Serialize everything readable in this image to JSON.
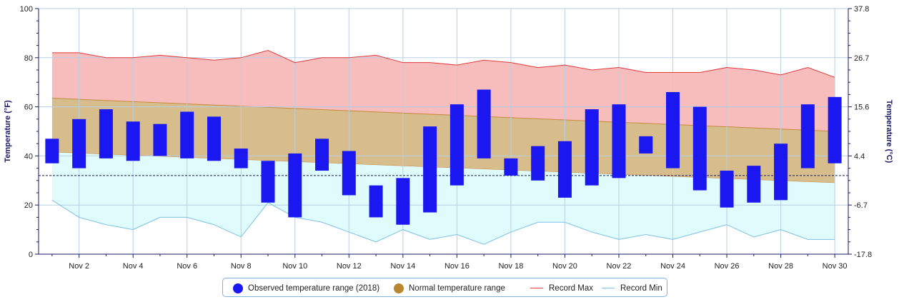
{
  "chart_data": {
    "type": "bar",
    "title": "",
    "y_left": {
      "label": "Temperature (°F)",
      "ylim": [
        0,
        100
      ],
      "ticks": [
        "0",
        "20",
        "40",
        "60",
        "80",
        "100"
      ]
    },
    "y_right": {
      "label": "Temperature (°C)",
      "ticks": [
        "-17.8",
        "-6.7",
        "4.4",
        "15.6",
        "26.7",
        "37.8"
      ]
    },
    "x": {
      "days": [
        1,
        2,
        3,
        4,
        5,
        6,
        7,
        8,
        9,
        10,
        11,
        12,
        13,
        14,
        15,
        16,
        17,
        18,
        19,
        20,
        21,
        22,
        23,
        24,
        25,
        26,
        27,
        28,
        29,
        30
      ],
      "tick_labels": [
        "Nov 2",
        "Nov 4",
        "Nov 6",
        "Nov 8",
        "Nov 10",
        "Nov 12",
        "Nov 14",
        "Nov 16",
        "Nov 18",
        "Nov 20",
        "Nov 22",
        "Nov 24",
        "Nov 26",
        "Nov 28",
        "Nov 30"
      ]
    },
    "freezing_line_f": 32,
    "grid": true,
    "legend_position": "bottom-center",
    "colors": {
      "observed": "#1a17f0",
      "normal": "#d7bd8c",
      "normal_edge": "#c78a40",
      "record_max_fill": "#f7bdbd",
      "record_max_line": "#e23b3b",
      "record_min_fill": "#dffbfb",
      "record_min_line": "#7cc0e8",
      "legend_normal_dot": "#b8862d"
    },
    "series": [
      {
        "name": "Observed temperature range (2018)",
        "low": [
          37,
          35,
          39,
          38,
          40,
          39,
          38,
          35,
          21,
          15,
          34,
          24,
          15,
          12,
          17,
          28,
          39,
          32,
          30,
          23,
          28,
          31,
          41,
          35,
          26,
          19,
          21,
          22,
          35,
          37
        ],
        "high": [
          47,
          55,
          59,
          54,
          53,
          58,
          56,
          43,
          38,
          41,
          47,
          42,
          28,
          31,
          52,
          61,
          67,
          39,
          44,
          46,
          59,
          61,
          48,
          66,
          60,
          34,
          36,
          45,
          61,
          64
        ]
      },
      {
        "name": "Normal temperature range",
        "start": [
          41.5,
          63.5
        ],
        "end": [
          29,
          50
        ]
      },
      {
        "name": "Record Max",
        "values": [
          82,
          82,
          80,
          80,
          81,
          80,
          79,
          80,
          83,
          78,
          80,
          80,
          81,
          78,
          78,
          77,
          79,
          78,
          76,
          77,
          75,
          76,
          74,
          74,
          74,
          76,
          75,
          73,
          76,
          72
        ]
      },
      {
        "name": "Record Min",
        "values": [
          22,
          15,
          12,
          10,
          15,
          15,
          12,
          7,
          21,
          15,
          13,
          9,
          5,
          10,
          6,
          8,
          4,
          9,
          13,
          13,
          9,
          6,
          8,
          6,
          9,
          12,
          7,
          10,
          6,
          6
        ]
      }
    ]
  },
  "legend": {
    "observed": "Observed temperature range (2018)",
    "normal": "Normal temperature range",
    "record_max": "Record Max",
    "record_min": "Record Min"
  }
}
